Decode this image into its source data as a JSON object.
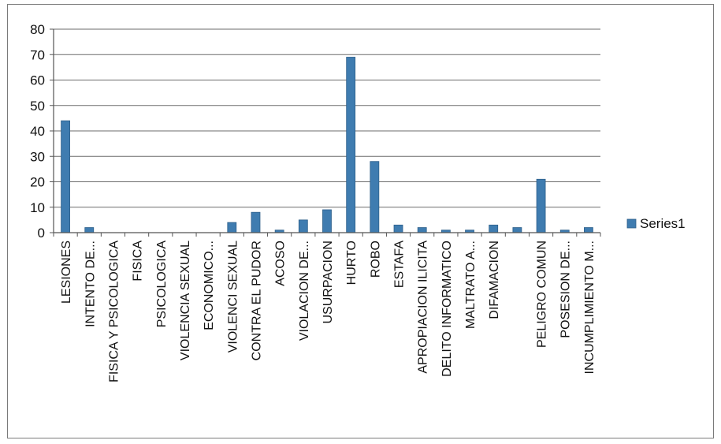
{
  "chart_data": {
    "type": "bar",
    "title": "",
    "xlabel": "",
    "ylabel": "",
    "ylim": [
      0,
      80
    ],
    "yticks": [
      0,
      10,
      20,
      30,
      40,
      50,
      60,
      70,
      80
    ],
    "grid": true,
    "legend_position": "right",
    "categories": [
      "LESIONES",
      "INTENTO DE...",
      "FISICA Y PSICOLOGICA",
      "FISICA",
      "PSICOLOGICA",
      "VIOLENCIA SEXUAL",
      "ECONOMICO...",
      "VIOLENCI SEXUAL",
      "CONTRA EL PUDOR",
      "ACOSO",
      "VIOLACION DE...",
      "USURPACION",
      "HURTO",
      "ROBO",
      "ESTAFA",
      "APROPIACION ILICITA",
      "DELITO INFORMATICO",
      "MALTRATO A...",
      "DIFAMACION",
      "",
      "PELIGRO COMUN",
      "POSESION DE...",
      "INCUMPLIMIENTO M..."
    ],
    "series": [
      {
        "name": "Series1",
        "color": "#3f7cb0",
        "values": [
          44,
          2,
          0,
          0,
          0,
          0,
          0,
          4,
          8,
          1,
          5,
          9,
          69,
          28,
          3,
          2,
          1,
          1,
          3,
          2,
          21,
          1,
          2
        ]
      }
    ]
  }
}
